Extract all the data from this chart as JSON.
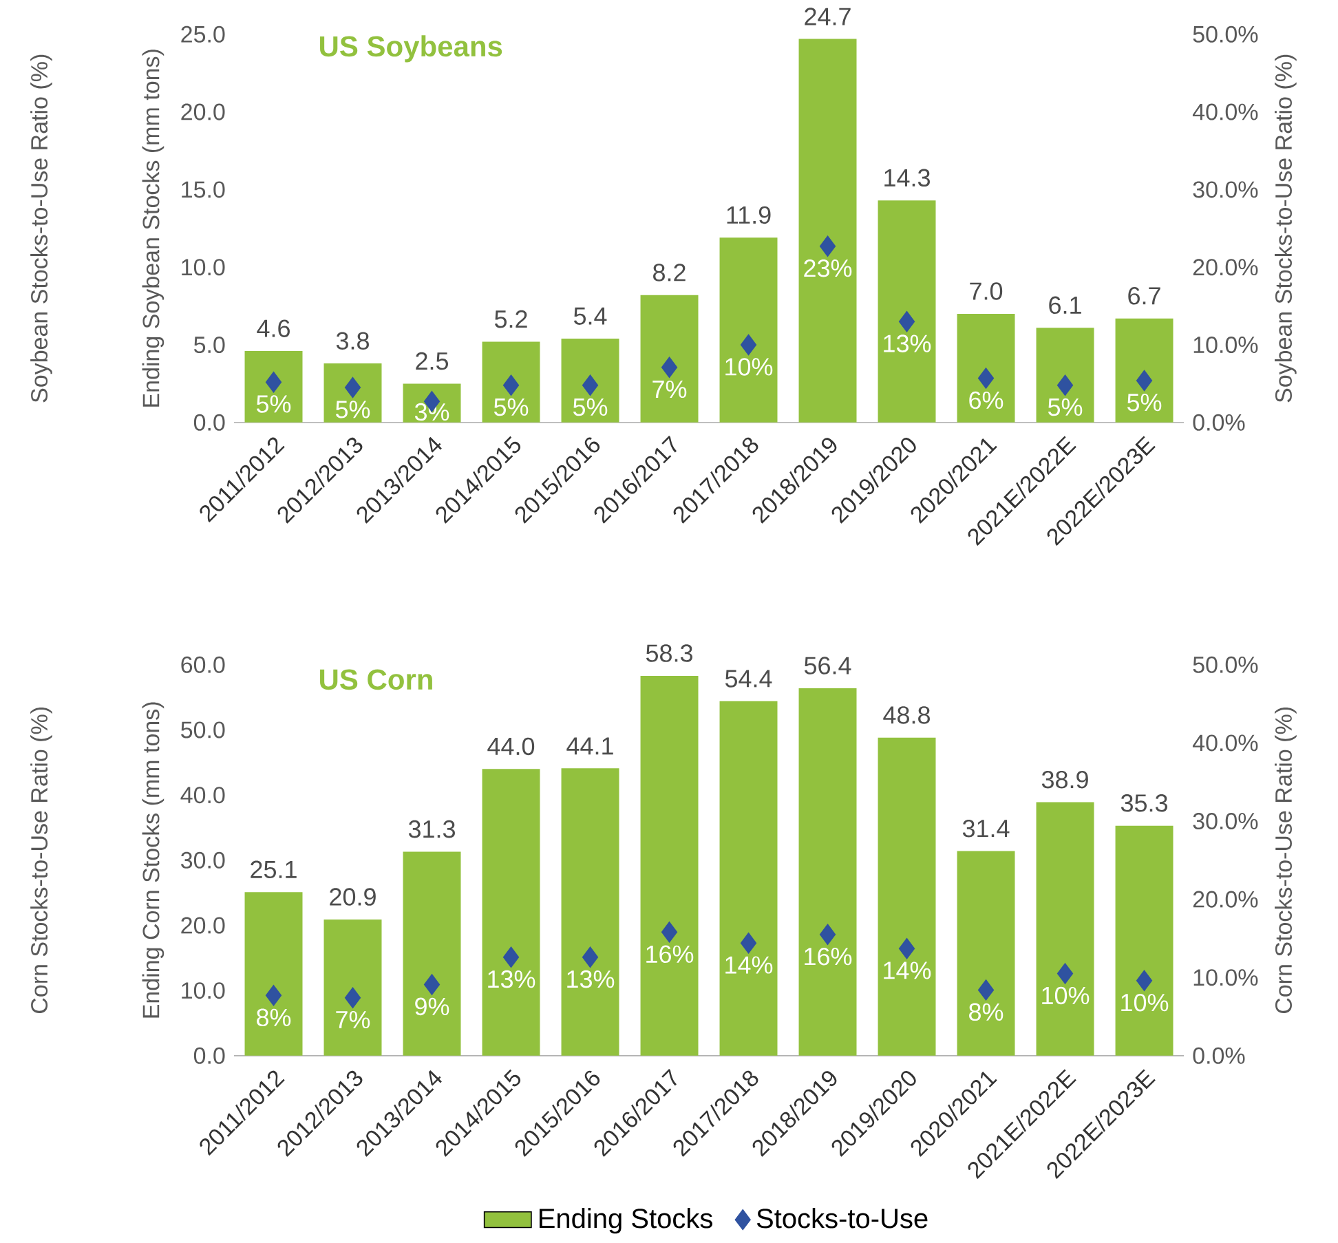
{
  "chart_data": [
    {
      "type": "bar",
      "title": "US Soybeans",
      "ylabel": "Ending Soybean Stocks (mm tons)",
      "y2label": "Soybean Stocks-to-Use Ratio (%)",
      "annotations": [
        "Soybean Stocks-to-Use Ratio (%)"
      ],
      "categories": [
        "2011/2012",
        "2012/2013",
        "2013/2014",
        "2014/2015",
        "2015/2016",
        "2016/2017",
        "2017/2018",
        "2018/2019",
        "2019/2020",
        "2020/2021",
        "2021E/2022E",
        "2022E/2023E"
      ],
      "series": [
        {
          "color": "#92c13e",
          "values": [
            4.6,
            3.8,
            2.5,
            5.2,
            5.4,
            8.2,
            11.9,
            24.7,
            14.3,
            7.0,
            6.1,
            6.7
          ],
          "value_labels": [
            "4.6",
            "3.8",
            "2.5",
            "5.2",
            "5.4",
            "8.2",
            "11.9",
            "24.7",
            "14.3",
            "7.0",
            "6.1",
            "6.7"
          ]
        },
        {
          "type": "scatter",
          "axis": "y2",
          "color": "#2f52a0",
          "values": [
            5.2,
            4.5,
            2.7,
            4.8,
            4.8,
            7.1,
            10.0,
            22.7,
            13.0,
            5.7,
            4.8,
            5.4
          ],
          "value_labels": [
            "5%",
            "5%",
            "3%",
            "5%",
            "5%",
            "7%",
            "10%",
            "23%",
            "13%",
            "6%",
            "5%",
            "5%"
          ]
        }
      ],
      "ylim": [
        0,
        25
      ],
      "yticks": [
        {
          "value": 0,
          "label": "0.0"
        },
        {
          "value": 5,
          "label": "5.0"
        },
        {
          "value": 10,
          "label": "10.0"
        },
        {
          "value": 15,
          "label": "15.0"
        },
        {
          "value": 20,
          "label": "20.0"
        },
        {
          "value": 25,
          "label": "25.0"
        }
      ],
      "y2lim": [
        0,
        50
      ],
      "y2ticks": [
        {
          "value": 0,
          "label": "0.0%"
        },
        {
          "value": 10,
          "label": "10.0%"
        },
        {
          "value": 20,
          "label": "20.0%"
        },
        {
          "value": 30,
          "label": "30.0%"
        },
        {
          "value": 40,
          "label": "40.0%"
        },
        {
          "value": 50,
          "label": "50.0%"
        }
      ],
      "marker": "diamond"
    },
    {
      "type": "bar",
      "title": "US Corn",
      "ylabel": "Ending Corn Stocks (mm tons)",
      "y2label": "Corn Stocks-to-Use Ratio (%)",
      "annotations": [
        "Corn Stocks-to-Use Ratio (%)"
      ],
      "categories": [
        "2011/2012",
        "2012/2013",
        "2013/2014",
        "2014/2015",
        "2015/2016",
        "2016/2017",
        "2017/2018",
        "2018/2019",
        "2019/2020",
        "2020/2021",
        "2021E/2022E",
        "2022E/2023E"
      ],
      "series": [
        {
          "name": "Ending Stocks",
          "color": "#92c13e",
          "values": [
            25.1,
            20.9,
            31.3,
            44.0,
            44.1,
            58.3,
            54.4,
            56.4,
            48.8,
            31.4,
            38.9,
            35.3
          ],
          "value_labels": [
            "25.1",
            "20.9",
            "31.3",
            "44.0",
            "44.1",
            "58.3",
            "54.4",
            "56.4",
            "48.8",
            "31.4",
            "38.9",
            "35.3"
          ]
        },
        {
          "type": "scatter",
          "name": "Stocks-to-Use",
          "axis": "y2",
          "color": "#2f52a0",
          "values": [
            7.7,
            7.4,
            9.1,
            12.6,
            12.6,
            15.8,
            14.4,
            15.5,
            13.7,
            8.4,
            10.5,
            9.6
          ],
          "value_labels": [
            "8%",
            "7%",
            "9%",
            "13%",
            "13%",
            "16%",
            "14%",
            "16%",
            "14%",
            "8%",
            "10%",
            "10%"
          ]
        }
      ],
      "ylim": [
        0,
        60
      ],
      "yticks": [
        {
          "value": 0,
          "label": "0.0"
        },
        {
          "value": 10,
          "label": "10.0"
        },
        {
          "value": 20,
          "label": "20.0"
        },
        {
          "value": 30,
          "label": "30.0"
        },
        {
          "value": 40,
          "label": "40.0"
        },
        {
          "value": 50,
          "label": "50.0"
        },
        {
          "value": 60,
          "label": "60.0"
        }
      ],
      "y2lim": [
        0,
        50
      ],
      "y2ticks": [
        {
          "value": 0,
          "label": "0.0%"
        },
        {
          "value": 10,
          "label": "10.0%"
        },
        {
          "value": 20,
          "label": "20.0%"
        },
        {
          "value": 30,
          "label": "30.0%"
        },
        {
          "value": 40,
          "label": "40.0%"
        },
        {
          "value": 50,
          "label": "50.0%"
        }
      ],
      "marker": "diamond",
      "legend": "bottom"
    }
  ]
}
